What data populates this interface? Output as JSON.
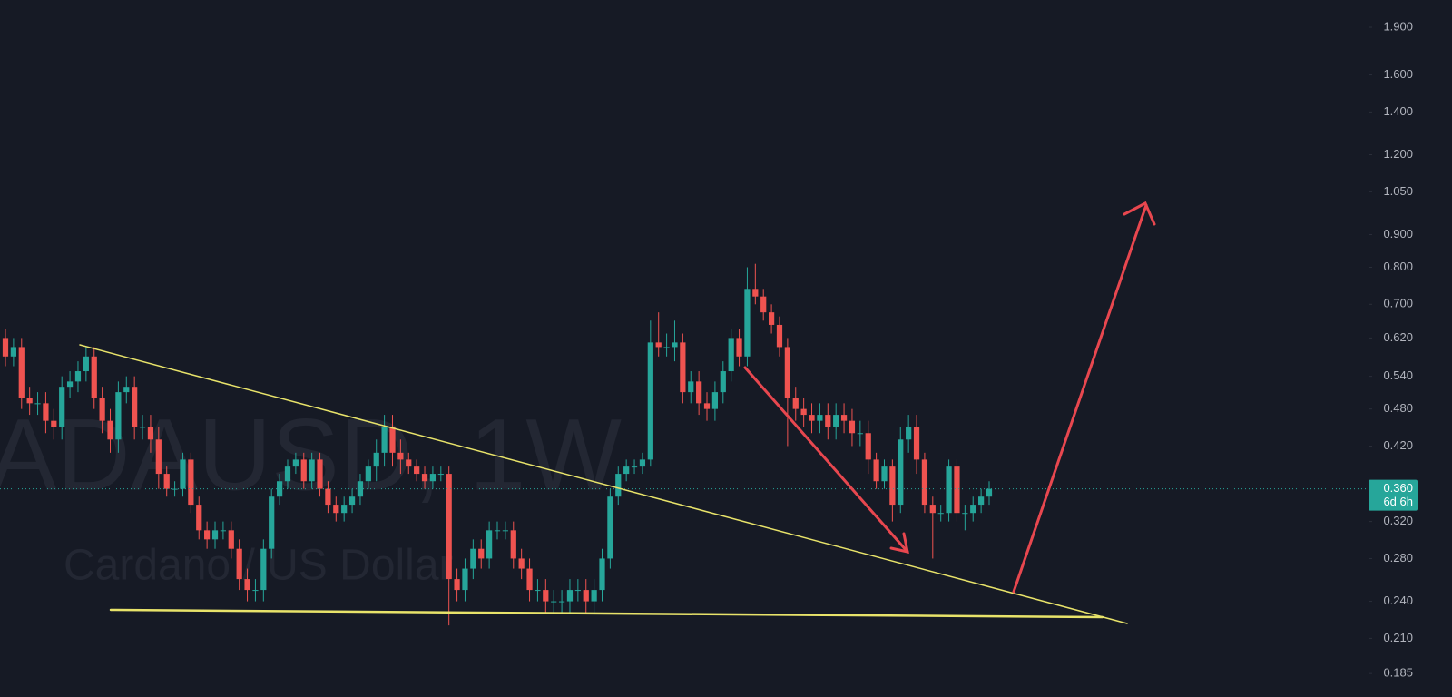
{
  "chart_data": {
    "type": "candlestick",
    "title": "ADAUSD, 1W",
    "subtitle": "Cardano / US Dollar",
    "log_scale": true,
    "up_color": "#26a69a",
    "down_color": "#ef5350",
    "ylim": [
      0.17,
      2.096
    ],
    "yticks": [
      {
        "value": 1.9,
        "label": "1.900"
      },
      {
        "value": 1.6,
        "label": "1.600"
      },
      {
        "value": 1.4,
        "label": "1.400"
      },
      {
        "value": 1.2,
        "label": "1.200"
      },
      {
        "value": 1.05,
        "label": "1.050"
      },
      {
        "value": 0.9,
        "label": "0.900"
      },
      {
        "value": 0.8,
        "label": "0.800"
      },
      {
        "value": 0.7,
        "label": "0.700"
      },
      {
        "value": 0.62,
        "label": "0.620"
      },
      {
        "value": 0.54,
        "label": "0.540"
      },
      {
        "value": 0.48,
        "label": "0.480"
      },
      {
        "value": 0.42,
        "label": "0.420"
      },
      {
        "value": 0.32,
        "label": "0.320"
      },
      {
        "value": 0.28,
        "label": "0.280"
      },
      {
        "value": 0.24,
        "label": "0.240"
      },
      {
        "value": 0.21,
        "label": "0.210"
      },
      {
        "value": 0.185,
        "label": "0.185"
      }
    ],
    "last_price": {
      "value": 0.36,
      "label": "0.360"
    },
    "countdown": "6d 6h",
    "open": [
      0.62,
      0.58,
      0.6,
      0.5,
      0.49,
      0.49,
      0.46,
      0.45,
      0.52,
      0.53,
      0.55,
      0.58,
      0.5,
      0.46,
      0.43,
      0.51,
      0.52,
      0.45,
      0.45,
      0.43,
      0.38,
      0.36,
      0.36,
      0.4,
      0.34,
      0.31,
      0.3,
      0.31,
      0.31,
      0.29,
      0.26,
      0.25,
      0.25,
      0.29,
      0.35,
      0.37,
      0.39,
      0.4,
      0.37,
      0.4,
      0.36,
      0.34,
      0.33,
      0.34,
      0.35,
      0.37,
      0.39,
      0.41,
      0.45,
      0.41,
      0.4,
      0.39,
      0.38,
      0.37,
      0.38,
      0.38,
      0.26,
      0.25,
      0.27,
      0.29,
      0.28,
      0.31,
      0.31,
      0.31,
      0.28,
      0.27,
      0.25,
      0.25,
      0.24,
      0.24,
      0.24,
      0.25,
      0.25,
      0.24,
      0.25,
      0.28,
      0.35,
      0.38,
      0.39,
      0.39,
      0.4,
      0.61,
      0.6,
      0.6,
      0.61,
      0.51,
      0.53,
      0.49,
      0.48,
      0.51,
      0.55,
      0.62,
      0.58,
      0.74,
      0.72,
      0.68,
      0.65,
      0.6,
      0.5,
      0.48,
      0.47,
      0.46,
      0.47,
      0.45,
      0.47,
      0.46,
      0.44,
      0.44,
      0.4,
      0.37,
      0.39,
      0.34,
      0.43,
      0.45,
      0.4,
      0.34,
      0.33,
      0.33,
      0.39,
      0.33,
      0.33,
      0.34,
      0.35
    ],
    "high": [
      0.64,
      0.62,
      0.62,
      0.52,
      0.51,
      0.51,
      0.48,
      0.54,
      0.55,
      0.57,
      0.6,
      0.6,
      0.52,
      0.48,
      0.53,
      0.54,
      0.54,
      0.47,
      0.47,
      0.45,
      0.39,
      0.37,
      0.41,
      0.41,
      0.35,
      0.32,
      0.32,
      0.32,
      0.32,
      0.3,
      0.27,
      0.26,
      0.3,
      0.36,
      0.38,
      0.4,
      0.41,
      0.41,
      0.41,
      0.41,
      0.37,
      0.35,
      0.35,
      0.36,
      0.38,
      0.4,
      0.43,
      0.47,
      0.47,
      0.43,
      0.41,
      0.4,
      0.39,
      0.39,
      0.39,
      0.39,
      0.27,
      0.28,
      0.3,
      0.3,
      0.32,
      0.32,
      0.32,
      0.32,
      0.29,
      0.28,
      0.26,
      0.26,
      0.25,
      0.25,
      0.26,
      0.26,
      0.26,
      0.26,
      0.29,
      0.36,
      0.39,
      0.4,
      0.4,
      0.41,
      0.66,
      0.68,
      0.63,
      0.66,
      0.63,
      0.55,
      0.55,
      0.51,
      0.53,
      0.57,
      0.64,
      0.64,
      0.8,
      0.81,
      0.74,
      0.7,
      0.67,
      0.62,
      0.52,
      0.5,
      0.49,
      0.49,
      0.49,
      0.49,
      0.49,
      0.48,
      0.46,
      0.46,
      0.41,
      0.4,
      0.4,
      0.45,
      0.47,
      0.47,
      0.41,
      0.35,
      0.34,
      0.4,
      0.4,
      0.34,
      0.35,
      0.36,
      0.37
    ],
    "low": [
      0.56,
      0.56,
      0.48,
      0.47,
      0.47,
      0.44,
      0.43,
      0.43,
      0.5,
      0.51,
      0.53,
      0.48,
      0.44,
      0.41,
      0.41,
      0.49,
      0.43,
      0.43,
      0.41,
      0.36,
      0.35,
      0.35,
      0.35,
      0.33,
      0.3,
      0.29,
      0.29,
      0.3,
      0.28,
      0.25,
      0.24,
      0.24,
      0.24,
      0.28,
      0.34,
      0.36,
      0.38,
      0.36,
      0.36,
      0.35,
      0.33,
      0.32,
      0.32,
      0.33,
      0.34,
      0.36,
      0.37,
      0.39,
      0.39,
      0.38,
      0.38,
      0.37,
      0.36,
      0.36,
      0.37,
      0.22,
      0.24,
      0.24,
      0.26,
      0.27,
      0.27,
      0.3,
      0.3,
      0.27,
      0.26,
      0.24,
      0.24,
      0.23,
      0.23,
      0.23,
      0.23,
      0.24,
      0.23,
      0.23,
      0.24,
      0.27,
      0.34,
      0.37,
      0.38,
      0.38,
      0.39,
      0.58,
      0.58,
      0.57,
      0.49,
      0.49,
      0.47,
      0.46,
      0.46,
      0.49,
      0.53,
      0.56,
      0.56,
      0.7,
      0.66,
      0.63,
      0.58,
      0.42,
      0.46,
      0.45,
      0.44,
      0.44,
      0.43,
      0.43,
      0.44,
      0.42,
      0.42,
      0.38,
      0.36,
      0.36,
      0.32,
      0.33,
      0.41,
      0.38,
      0.33,
      0.28,
      0.32,
      0.32,
      0.32,
      0.31,
      0.32,
      0.33,
      0.34
    ],
    "close": [
      0.58,
      0.6,
      0.5,
      0.49,
      0.49,
      0.46,
      0.45,
      0.52,
      0.53,
      0.55,
      0.58,
      0.5,
      0.46,
      0.43,
      0.51,
      0.52,
      0.45,
      0.45,
      0.43,
      0.38,
      0.36,
      0.36,
      0.4,
      0.34,
      0.31,
      0.3,
      0.31,
      0.31,
      0.29,
      0.26,
      0.25,
      0.25,
      0.29,
      0.35,
      0.37,
      0.39,
      0.4,
      0.37,
      0.4,
      0.36,
      0.34,
      0.33,
      0.34,
      0.35,
      0.37,
      0.39,
      0.41,
      0.45,
      0.41,
      0.4,
      0.39,
      0.38,
      0.37,
      0.38,
      0.38,
      0.26,
      0.25,
      0.27,
      0.29,
      0.28,
      0.31,
      0.31,
      0.31,
      0.28,
      0.27,
      0.25,
      0.25,
      0.24,
      0.24,
      0.24,
      0.25,
      0.25,
      0.24,
      0.25,
      0.28,
      0.35,
      0.38,
      0.39,
      0.39,
      0.4,
      0.61,
      0.6,
      0.6,
      0.61,
      0.51,
      0.53,
      0.49,
      0.48,
      0.51,
      0.55,
      0.62,
      0.58,
      0.74,
      0.72,
      0.68,
      0.65,
      0.6,
      0.5,
      0.48,
      0.47,
      0.46,
      0.47,
      0.45,
      0.47,
      0.46,
      0.44,
      0.44,
      0.4,
      0.37,
      0.39,
      0.34,
      0.43,
      0.45,
      0.4,
      0.34,
      0.33,
      0.33,
      0.39,
      0.33,
      0.33,
      0.34,
      0.35,
      0.36
    ]
  }
}
